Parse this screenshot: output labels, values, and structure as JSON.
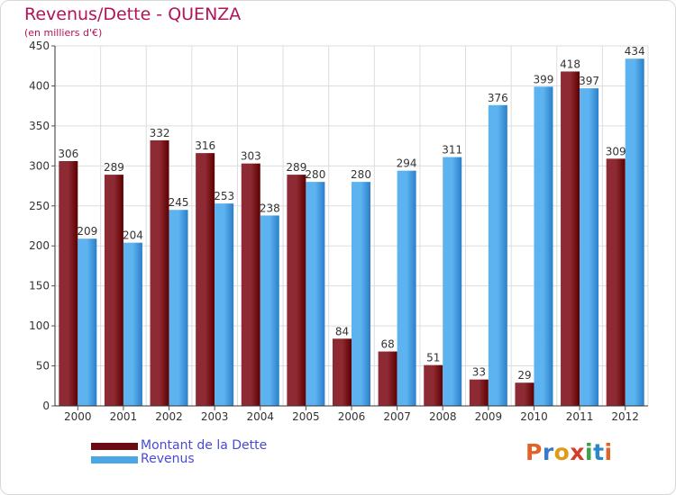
{
  "header": {
    "title": "Revenus/Dette - QUENZA",
    "subtitle": "(en milliers d'€)"
  },
  "colors": {
    "debt_dark": "#5c0000",
    "debt_light": "#8e2a33",
    "rev_dark": "#2a7fc9",
    "rev_light": "#5cb3ef",
    "title": "#b0145a",
    "legend_text": "#4a4ad8",
    "grid": "#dddddd"
  },
  "legend": [
    {
      "label": "Montant de la Dette",
      "color": "#6b0a12"
    },
    {
      "label": "Revenus",
      "color": "#4aa6e6"
    }
  ],
  "logo": {
    "text": "Proxiti",
    "letter_colors": [
      "#e0632a",
      "#3a78c8",
      "#e09a1a",
      "#d63c2a",
      "#3aa04a",
      "#2a88c8",
      "#e0632a"
    ]
  },
  "chart_data": {
    "type": "bar",
    "categories": [
      "2000",
      "2001",
      "2002",
      "2003",
      "2004",
      "2005",
      "2006",
      "2007",
      "2008",
      "2009",
      "2010",
      "2011",
      "2012"
    ],
    "series": [
      {
        "name": "Montant de la Dette",
        "values": [
          306,
          289,
          332,
          316,
          303,
          289,
          84,
          68,
          51,
          33,
          29,
          418,
          309
        ]
      },
      {
        "name": "Revenus",
        "values": [
          209,
          204,
          245,
          253,
          238,
          280,
          280,
          294,
          311,
          376,
          399,
          397,
          434
        ]
      }
    ],
    "ylim": [
      0,
      450
    ],
    "yticks": [
      0,
      50,
      100,
      150,
      200,
      250,
      300,
      350,
      400,
      450
    ],
    "grid": true,
    "legend_position": "bottom-left"
  }
}
